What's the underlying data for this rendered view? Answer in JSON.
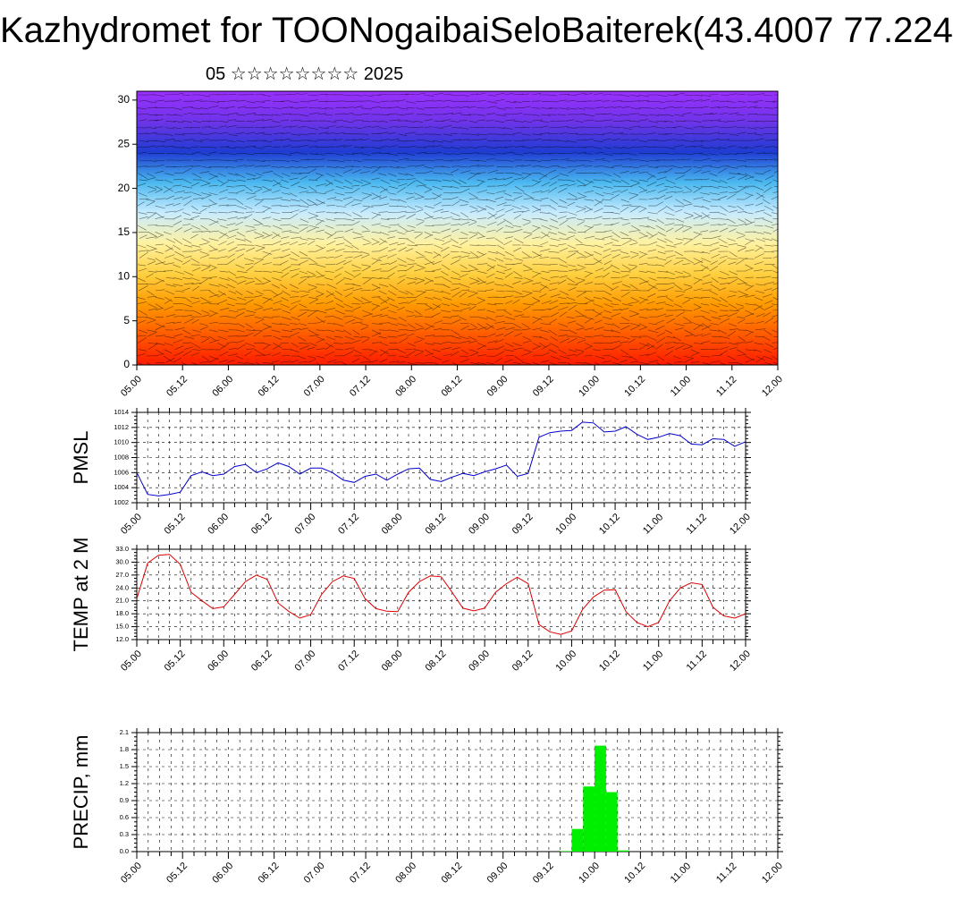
{
  "page": {
    "title": "Kazhydromet for TOONogaibaiSeloBaiterek(43.4007 77.224",
    "subtitle": "05 ☆☆☆☆☆☆☆☆ 2025"
  },
  "colors": {
    "pmsl_line": "#0000cc",
    "temp_line": "#dd0000",
    "precip_bar": "#00ee00",
    "grid": "#000000",
    "cross_section_palette": [
      "#ff1a00",
      "#ff5a00",
      "#ff9a00",
      "#ffd040",
      "#fff2a0",
      "#c8ecff",
      "#4ab8f0",
      "#1e3cd2",
      "#6e34e8",
      "#9b30ff"
    ]
  },
  "chart_data": [
    {
      "type": "heatmap",
      "name": "cross_section",
      "xlabel": "",
      "ylabel": "",
      "xticks": [
        "05.00",
        "05.12",
        "06.00",
        "06.12",
        "07.00",
        "07.12",
        "08.00",
        "08.12",
        "09.00",
        "09.12",
        "10.00",
        "10.12",
        "11.00",
        "11.12",
        "12.00"
      ],
      "yticks": [
        0,
        5,
        10,
        15,
        20,
        25,
        30
      ],
      "ylim": [
        0,
        31
      ],
      "overlay": "wind barbs",
      "grid": false
    },
    {
      "type": "line",
      "name": "pmsl",
      "ylabel": "PMSL",
      "xticks": [
        "05.00",
        "05.12",
        "06.00",
        "06.12",
        "07.00",
        "07.12",
        "08.00",
        "08.12",
        "09.00",
        "09.12",
        "10.00",
        "10.12",
        "11.00",
        "11.12",
        "12.00"
      ],
      "yticks": [
        "1002",
        "1004",
        "1006",
        "1008",
        "1010",
        "1012",
        "1014"
      ],
      "ylim": [
        1002,
        1014
      ],
      "x_step_hours": 3,
      "values": [
        1006.0,
        1003.1,
        1002.9,
        1003.1,
        1003.4,
        1005.6,
        1006.1,
        1005.6,
        1005.8,
        1006.8,
        1007.1,
        1006.0,
        1006.5,
        1007.3,
        1006.8,
        1005.8,
        1006.6,
        1006.6,
        1006.0,
        1005.0,
        1004.7,
        1005.5,
        1005.8,
        1005.0,
        1005.8,
        1006.5,
        1006.6,
        1005.1,
        1004.8,
        1005.4,
        1005.9,
        1005.6,
        1006.1,
        1006.5,
        1007.0,
        1005.5,
        1005.9,
        1010.7,
        1011.3,
        1011.5,
        1011.6,
        1012.7,
        1012.6,
        1011.4,
        1011.5,
        1012.1,
        1011.1,
        1010.4,
        1010.7,
        1011.2,
        1010.9,
        1009.8,
        1009.7,
        1010.5,
        1010.4,
        1009.5,
        1010.1
      ],
      "grid": true
    },
    {
      "type": "line",
      "name": "temp",
      "ylabel": "TEMP at 2 M",
      "xticks": [
        "05.00",
        "05.12",
        "06.00",
        "06.12",
        "07.00",
        "07.12",
        "08.00",
        "08.12",
        "09.00",
        "09.12",
        "10.00",
        "10.12",
        "11.00",
        "11.12",
        "12.00"
      ],
      "yticks": [
        "12.0",
        "15.0",
        "18.0",
        "21.0",
        "24.0",
        "27.0",
        "30.0",
        "33.0"
      ],
      "ylim": [
        12,
        33
      ],
      "x_step_hours": 3,
      "values": [
        21.5,
        29.8,
        31.6,
        31.8,
        29.5,
        23.0,
        21.0,
        19.2,
        19.6,
        22.5,
        25.5,
        27.0,
        26.0,
        20.5,
        18.5,
        17.0,
        17.8,
        22.5,
        25.5,
        26.8,
        26.2,
        21.5,
        19.2,
        18.6,
        18.5,
        23.0,
        25.5,
        26.8,
        26.6,
        23.0,
        19.3,
        18.7,
        19.3,
        23.0,
        25.0,
        26.5,
        25.0,
        15.5,
        13.8,
        13.2,
        14.0,
        19.0,
        21.9,
        23.5,
        23.6,
        18.5,
        16.0,
        15.0,
        16.0,
        21.0,
        24.0,
        25.2,
        24.8,
        19.5,
        17.5,
        17.0,
        18.0
      ],
      "grid": true
    },
    {
      "type": "bar",
      "name": "precip",
      "ylabel": "PRECIP, mm",
      "xticks": [
        "05.00",
        "05.12",
        "06.00",
        "06.12",
        "07.00",
        "07.12",
        "08.00",
        "08.12",
        "09.00",
        "09.12",
        "10.00",
        "10.12",
        "11.00",
        "11.12",
        "12.00"
      ],
      "yticks": [
        "0.0",
        "0.3",
        "0.6",
        "0.9",
        "1.2",
        "1.5",
        "1.8",
        "2.1"
      ],
      "ylim": [
        0,
        2.1
      ],
      "bars": [
        {
          "start_step": 37,
          "value": 0.01
        },
        {
          "start_step": 38,
          "value": 0.4
        },
        {
          "start_step": 39,
          "value": 1.15
        },
        {
          "start_step": 40,
          "value": 1.87
        },
        {
          "start_step": 41,
          "value": 1.05
        },
        {
          "start_step": 42,
          "value": 0.02
        }
      ],
      "grid": true
    }
  ]
}
